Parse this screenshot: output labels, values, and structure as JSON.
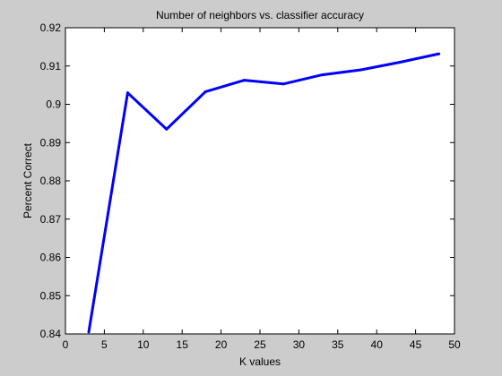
{
  "chart_data": {
    "type": "line",
    "title": "Number of neighbors vs. classifier accuracy",
    "xlabel": "K values",
    "ylabel": "Percent Correct",
    "xlim": [
      0,
      50
    ],
    "ylim": [
      0.84,
      0.92
    ],
    "xticks": [
      "0",
      "5",
      "10",
      "15",
      "20",
      "25",
      "30",
      "35",
      "40",
      "45",
      "50"
    ],
    "yticks": [
      "0.84",
      "0.85",
      "0.86",
      "0.87",
      "0.88",
      "0.89",
      "0.9",
      "0.91",
      "0.92"
    ],
    "grid": false,
    "series": [
      {
        "color": "#0000ff",
        "x": [
          3,
          8,
          13,
          18,
          23,
          28,
          33,
          38,
          43,
          48
        ],
        "y": [
          0.8405,
          0.903,
          0.8935,
          0.9033,
          0.9063,
          0.9053,
          0.9077,
          0.909,
          0.911,
          0.9132
        ]
      }
    ]
  },
  "colors": {
    "figure_background": "#cccccc",
    "axes_background": "#ffffff",
    "line": "#0000ff"
  }
}
